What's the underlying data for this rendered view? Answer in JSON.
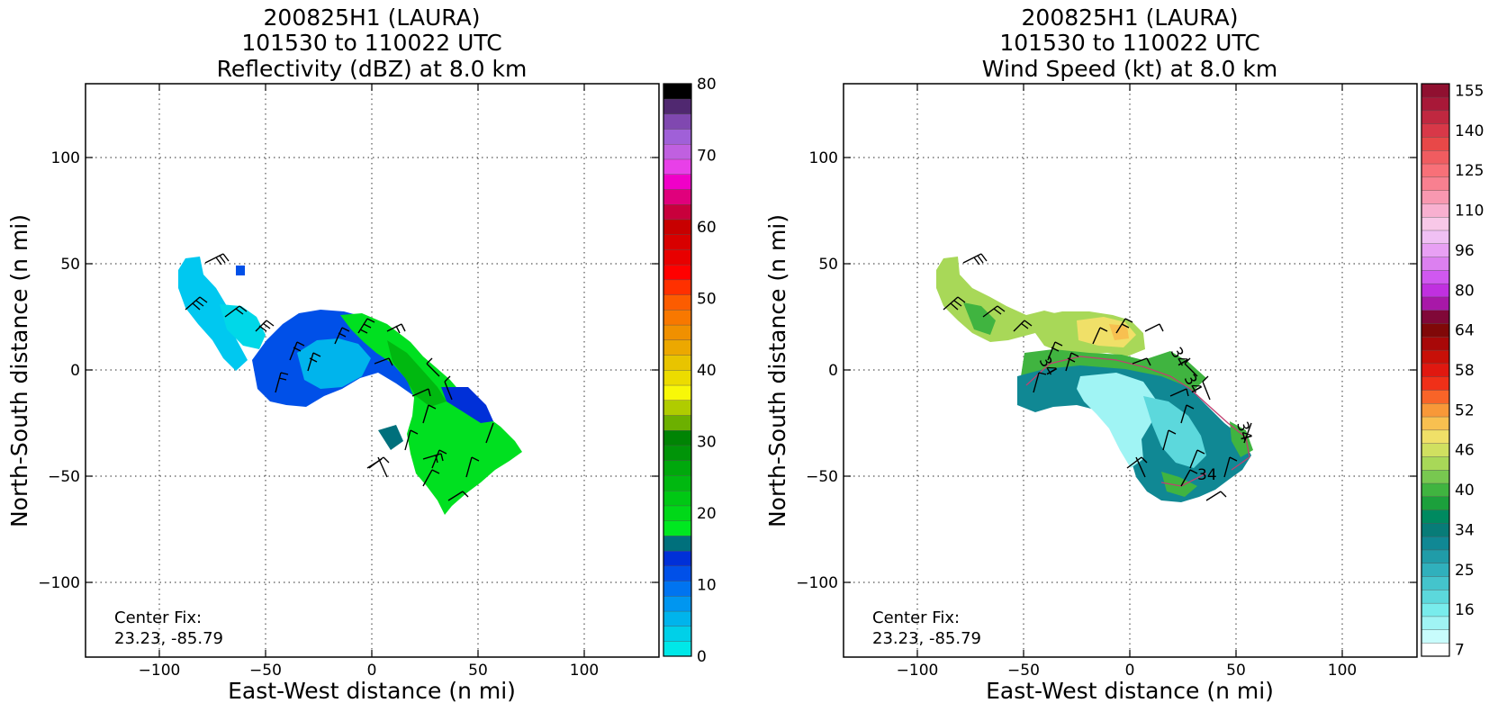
{
  "panels": [
    {
      "id": "reflectivity",
      "title_line1": "200825H1 (LAURA)",
      "title_line2": "101530 to 110022 UTC",
      "title_line3": "Reflectivity (dBZ) at 8.0 km",
      "xlabel": "East-West distance (n mi)",
      "ylabel": "North-South distance (n mi)",
      "center_fix_label": "Center Fix:",
      "center_fix_value": "23.23, -85.79",
      "x_ticks": [
        "−100",
        "−50",
        "0",
        "50",
        "100"
      ],
      "y_ticks": [
        "100",
        "50",
        "0",
        "−50",
        "−100"
      ],
      "colorbar_labels": [
        "80",
        "70",
        "60",
        "50",
        "40",
        "30",
        "20",
        "10",
        "0"
      ],
      "colorbar_colors": [
        "#00e8e8",
        "#00d0e8",
        "#00b4ec",
        "#0096f0",
        "#0074f0",
        "#0050e8",
        "#0030d8",
        "#00707c",
        "#00e820",
        "#00d818",
        "#00c814",
        "#00b810",
        "#00a80c",
        "#009408",
        "#008404",
        "#6cb000",
        "#b0cc00",
        "#f8f808",
        "#ecdc00",
        "#e8c400",
        "#eca800",
        "#f09000",
        "#f87800",
        "#fc5c00",
        "#ff3000",
        "#ff0000",
        "#e80000",
        "#d80000",
        "#c80000",
        "#c8003c",
        "#e0007c",
        "#f000c8",
        "#e840e8",
        "#c060e0",
        "#a060d8",
        "#8048b0",
        "#502870",
        "#000000"
      ]
    },
    {
      "id": "wind-speed",
      "title_line1": "200825H1 (LAURA)",
      "title_line2": "101530 to 110022 UTC",
      "title_line3": "Wind Speed (kt) at 8.0 km",
      "xlabel": "East-West distance (n mi)",
      "ylabel": "North-South distance (n mi)",
      "center_fix_label": "Center Fix:",
      "center_fix_value": "23.23, -85.79",
      "x_ticks": [
        "−100",
        "−50",
        "0",
        "50",
        "100"
      ],
      "y_ticks": [
        "100",
        "50",
        "0",
        "−50",
        "−100"
      ],
      "colorbar_labels": [
        "155",
        "140",
        "125",
        "110",
        "96",
        "80",
        "64",
        "58",
        "52",
        "46",
        "40",
        "34",
        "25",
        "16",
        "7"
      ],
      "colorbar_colors": [
        "#ffffff",
        "#c8fcfc",
        "#a0f4f4",
        "#78ecec",
        "#5cd8dc",
        "#44c4cc",
        "#30b0bc",
        "#209ca8",
        "#108894",
        "#087c78",
        "#008a60",
        "#1ca03c",
        "#40b440",
        "#78c850",
        "#a8d858",
        "#d0e060",
        "#f0e068",
        "#f8c050",
        "#f89838",
        "#f86428",
        "#f03018",
        "#e01810",
        "#c81008",
        "#a80808",
        "#800808",
        "#800838",
        "#a818a8",
        "#c030e0",
        "#d058f0",
        "#dc80f0",
        "#e8a0f4",
        "#f0c0f4",
        "#f8c8e8",
        "#f8b0d0",
        "#f898b0",
        "#f88090",
        "#f87078",
        "#f05c60",
        "#e84848",
        "#d83848",
        "#c02840",
        "#a81838",
        "#901030"
      ],
      "contour_label": "34"
    }
  ],
  "chart_data": [
    {
      "type": "heatmap",
      "title": "200825H1 (LAURA) 101530 to 110022 UTC Reflectivity (dBZ) at 8.0 km",
      "xlabel": "East-West distance (n mi)",
      "ylabel": "North-South distance (n mi)",
      "xlim": [
        -135,
        135
      ],
      "ylim": [
        -135,
        135
      ],
      "x_ticks": [
        -100,
        -50,
        0,
        50,
        100
      ],
      "y_ticks": [
        -100,
        -50,
        0,
        50,
        100
      ],
      "grid": true,
      "colorbar": {
        "label_values": [
          0,
          10,
          20,
          30,
          40,
          50,
          60,
          70,
          80
        ],
        "range": [
          0,
          80
        ],
        "step": 2.5
      },
      "center_fix": [
        23.23,
        -85.79
      ],
      "echo_regions": [
        {
          "level": "cyan 0-10 dBZ",
          "approx_polygon": [
            [
              -93,
              52
            ],
            [
              -85,
              52
            ],
            [
              -82,
              40
            ],
            [
              -70,
              30
            ],
            [
              -60,
              15
            ],
            [
              -62,
              0
            ],
            [
              -75,
              5
            ],
            [
              -90,
              20
            ],
            [
              -95,
              30
            ]
          ]
        },
        {
          "level": "blue 10-15 dBZ",
          "approx_polygon": [
            [
              -55,
              -10
            ],
            [
              -45,
              -15
            ],
            [
              -30,
              -15
            ],
            [
              -15,
              -8
            ],
            [
              0,
              -5
            ],
            [
              15,
              -2
            ],
            [
              10,
              12
            ],
            [
              -10,
              25
            ],
            [
              -30,
              28
            ],
            [
              -45,
              20
            ],
            [
              -55,
              10
            ]
          ]
        },
        {
          "level": "green 15-30 dBZ",
          "approx_polygon": [
            [
              -10,
              28
            ],
            [
              10,
              25
            ],
            [
              25,
              10
            ],
            [
              35,
              0
            ],
            [
              45,
              -15
            ],
            [
              60,
              -30
            ],
            [
              72,
              -40
            ],
            [
              60,
              -50
            ],
            [
              45,
              -62
            ],
            [
              38,
              -68
            ],
            [
              25,
              -55
            ],
            [
              15,
              -40
            ],
            [
              22,
              -20
            ],
            [
              18,
              0
            ],
            [
              5,
              15
            ],
            [
              -10,
              10
            ],
            [
              -25,
              15
            ]
          ]
        }
      ]
    },
    {
      "type": "heatmap",
      "title": "200825H1 (LAURA) 101530 to 110022 UTC Wind Speed (kt) at 8.0 km",
      "xlabel": "East-West distance (n mi)",
      "ylabel": "North-South distance (n mi)",
      "xlim": [
        -135,
        135
      ],
      "ylim": [
        -135,
        135
      ],
      "x_ticks": [
        -100,
        -50,
        0,
        50,
        100
      ],
      "y_ticks": [
        -100,
        -50,
        0,
        50,
        100
      ],
      "grid": true,
      "colorbar": {
        "label_values": [
          7,
          16,
          25,
          34,
          40,
          46,
          52,
          58,
          64,
          80,
          96,
          110,
          125,
          140,
          155
        ]
      },
      "center_fix": [
        23.23,
        -85.79
      ],
      "contour_values": [
        34
      ],
      "wind_regions": [
        {
          "level": "light green 34-46 kt",
          "approx_polygon": [
            [
              -93,
              52
            ],
            [
              -85,
              50
            ],
            [
              -80,
              35
            ],
            [
              -60,
              25
            ],
            [
              -40,
              28
            ],
            [
              -25,
              28
            ],
            [
              -15,
              15
            ],
            [
              -35,
              10
            ],
            [
              -50,
              5
            ],
            [
              -70,
              10
            ],
            [
              -90,
              25
            ]
          ]
        },
        {
          "level": "yellow 46-52 kt",
          "approx_polygon": [
            [
              -25,
              25
            ],
            [
              0,
              25
            ],
            [
              12,
              20
            ],
            [
              5,
              10
            ],
            [
              -10,
              12
            ],
            [
              -25,
              15
            ]
          ]
        },
        {
          "level": "teal 16-34 kt",
          "approx_polygon": [
            [
              -45,
              -10
            ],
            [
              -30,
              -15
            ],
            [
              -10,
              -10
            ],
            [
              0,
              -5
            ],
            [
              20,
              -2
            ],
            [
              40,
              -15
            ],
            [
              55,
              -25
            ],
            [
              60,
              -35
            ],
            [
              50,
              -50
            ],
            [
              35,
              -55
            ],
            [
              20,
              -45
            ],
            [
              10,
              -25
            ],
            [
              5,
              -8
            ],
            [
              -15,
              5
            ],
            [
              -35,
              5
            ]
          ]
        }
      ]
    }
  ]
}
